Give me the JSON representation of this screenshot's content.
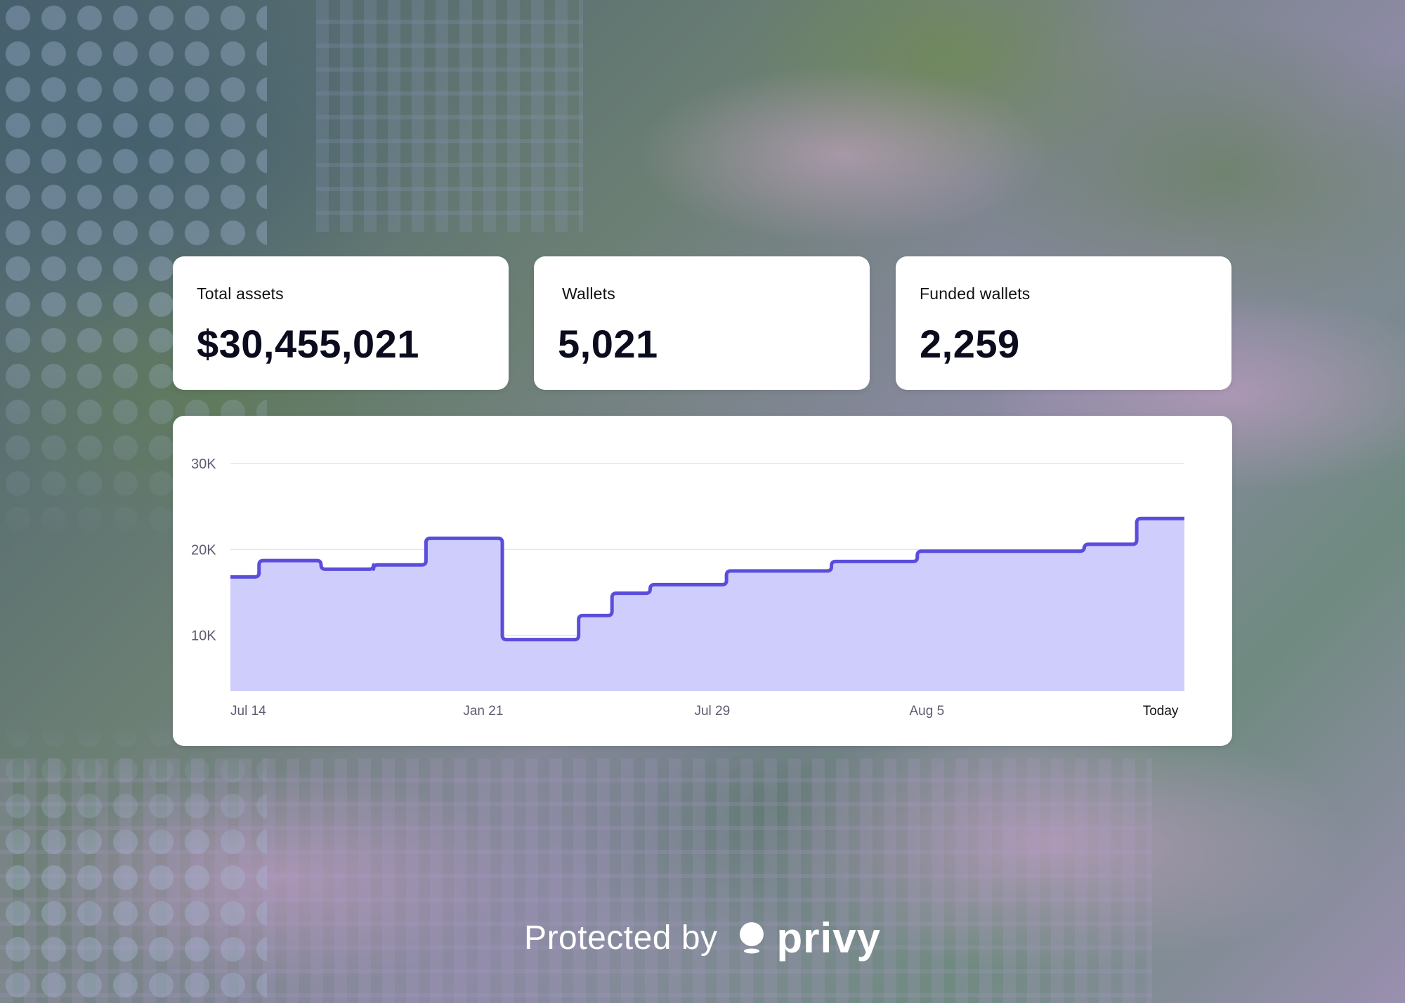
{
  "stats": [
    {
      "label": "Total assets",
      "value": "$30,455,021"
    },
    {
      "label": "Wallets",
      "value": "5,021"
    },
    {
      "label": "Funded wallets",
      "value": "2,259"
    }
  ],
  "chart_data": {
    "type": "area",
    "title": "",
    "xlabel": "",
    "ylabel": "",
    "ylim": [
      3500,
      30000
    ],
    "y_ticks": [
      {
        "value": 30000,
        "label": "30K"
      },
      {
        "value": 20000,
        "label": "20K"
      },
      {
        "value": 10000,
        "label": "10K"
      }
    ],
    "x_ticks": [
      {
        "index": 0,
        "label": "Jul 14"
      },
      {
        "index": 53,
        "label": "Jan 21"
      },
      {
        "index": 101,
        "label": "Jul 29"
      },
      {
        "index": 146,
        "label": "Aug 5"
      },
      {
        "index": 195,
        "label": "Today"
      }
    ],
    "x_max": 200,
    "series": [
      {
        "name": "Total assets",
        "steps": [
          {
            "x": 0,
            "y": 16800
          },
          {
            "x": 6,
            "y": 18700
          },
          {
            "x": 19,
            "y": 17700
          },
          {
            "x": 30,
            "y": 18200
          },
          {
            "x": 41,
            "y": 21300
          },
          {
            "x": 57,
            "y": 9500
          },
          {
            "x": 73,
            "y": 12300
          },
          {
            "x": 80,
            "y": 14900
          },
          {
            "x": 88,
            "y": 15900
          },
          {
            "x": 104,
            "y": 17500
          },
          {
            "x": 126,
            "y": 18600
          },
          {
            "x": 144,
            "y": 19800
          },
          {
            "x": 179,
            "y": 20600
          },
          {
            "x": 190,
            "y": 23600
          }
        ]
      }
    ]
  },
  "footer": {
    "prefix": "Protected by",
    "brand": "privy"
  },
  "colors": {
    "line": "#5b4ddb",
    "fill": "#cfcdfc",
    "grid": "#e6e6ea",
    "axis_text": "#5c5c70",
    "today_text": "#111111"
  }
}
